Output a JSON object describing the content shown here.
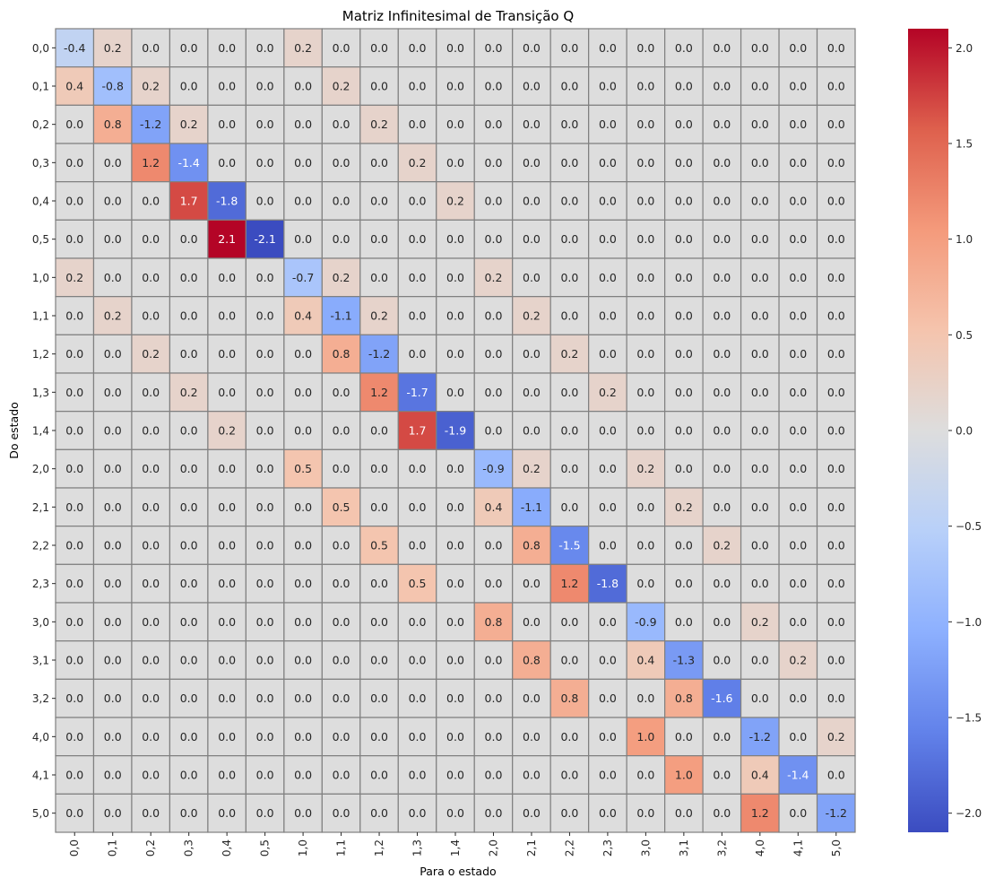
{
  "chart_data": {
    "type": "heatmap",
    "title": "Matriz Infinitesimal de Transição Q",
    "xlabel": "Para o estado",
    "ylabel": "Do estado",
    "x_categories": [
      "0,0",
      "0,1",
      "0,2",
      "0,3",
      "0,4",
      "0,5",
      "1,0",
      "1,1",
      "1,2",
      "1,3",
      "1,4",
      "2,0",
      "2,1",
      "2,2",
      "2,3",
      "3,0",
      "3,1",
      "3,2",
      "4,0",
      "4,1",
      "5,0"
    ],
    "y_categories": [
      "0,0",
      "0,1",
      "0,2",
      "0,3",
      "0,4",
      "0,5",
      "1,0",
      "1,1",
      "1,2",
      "1,3",
      "1,4",
      "2,0",
      "2,1",
      "2,2",
      "2,3",
      "3,0",
      "3,1",
      "3,2",
      "4,0",
      "4,1",
      "5,0"
    ],
    "values": [
      [
        -0.4,
        0.2,
        0,
        0,
        0,
        0,
        0.2,
        0,
        0,
        0,
        0,
        0,
        0,
        0,
        0,
        0,
        0,
        0,
        0,
        0,
        0
      ],
      [
        0.4,
        -0.8,
        0.2,
        0,
        0,
        0,
        0,
        0.2,
        0,
        0,
        0,
        0,
        0,
        0,
        0,
        0,
        0,
        0,
        0,
        0,
        0
      ],
      [
        0,
        0.8,
        -1.2,
        0.2,
        0,
        0,
        0,
        0,
        0.2,
        0,
        0,
        0,
        0,
        0,
        0,
        0,
        0,
        0,
        0,
        0,
        0
      ],
      [
        0,
        0,
        1.2,
        -1.4,
        0,
        0,
        0,
        0,
        0,
        0.2,
        0,
        0,
        0,
        0,
        0,
        0,
        0,
        0,
        0,
        0,
        0
      ],
      [
        0,
        0,
        0,
        1.7,
        -1.8,
        0,
        0,
        0,
        0,
        0,
        0.2,
        0,
        0,
        0,
        0,
        0,
        0,
        0,
        0,
        0,
        0
      ],
      [
        0,
        0,
        0,
        0,
        2.1,
        -2.1,
        0,
        0,
        0,
        0,
        0,
        0,
        0,
        0,
        0,
        0,
        0,
        0,
        0,
        0,
        0
      ],
      [
        0.2,
        0,
        0,
        0,
        0,
        0,
        -0.7,
        0.2,
        0,
        0,
        0,
        0.2,
        0,
        0,
        0,
        0,
        0,
        0,
        0,
        0,
        0
      ],
      [
        0,
        0.2,
        0,
        0,
        0,
        0,
        0.4,
        -1.1,
        0.2,
        0,
        0,
        0,
        0.2,
        0,
        0,
        0,
        0,
        0,
        0,
        0,
        0
      ],
      [
        0,
        0,
        0.2,
        0,
        0,
        0,
        0,
        0.8,
        -1.2,
        0,
        0,
        0,
        0,
        0.2,
        0,
        0,
        0,
        0,
        0,
        0,
        0
      ],
      [
        0,
        0,
        0,
        0.2,
        0,
        0,
        0,
        0,
        1.2,
        -1.7,
        0,
        0,
        0,
        0,
        0.2,
        0,
        0,
        0,
        0,
        0,
        0
      ],
      [
        0,
        0,
        0,
        0,
        0.2,
        0,
        0,
        0,
        0,
        1.7,
        -1.9,
        0,
        0,
        0,
        0,
        0,
        0,
        0,
        0,
        0,
        0
      ],
      [
        0,
        0,
        0,
        0,
        0,
        0,
        0.5,
        0,
        0,
        0,
        0,
        -0.9,
        0.2,
        0,
        0,
        0.2,
        0,
        0,
        0,
        0,
        0
      ],
      [
        0,
        0,
        0,
        0,
        0,
        0,
        0,
        0.5,
        0,
        0,
        0,
        0.4,
        -1.1,
        0,
        0,
        0,
        0.2,
        0,
        0,
        0,
        0
      ],
      [
        0,
        0,
        0,
        0,
        0,
        0,
        0,
        0,
        0.5,
        0,
        0,
        0,
        0.8,
        -1.5,
        0,
        0,
        0,
        0.2,
        0,
        0,
        0
      ],
      [
        0,
        0,
        0,
        0,
        0,
        0,
        0,
        0,
        0,
        0.5,
        0,
        0,
        0,
        1.2,
        -1.8,
        0,
        0,
        0,
        0,
        0,
        0
      ],
      [
        0,
        0,
        0,
        0,
        0,
        0,
        0,
        0,
        0,
        0,
        0,
        0.8,
        0,
        0,
        0,
        -0.9,
        0,
        0,
        0.2,
        0,
        0
      ],
      [
        0,
        0,
        0,
        0,
        0,
        0,
        0,
        0,
        0,
        0,
        0,
        0,
        0.8,
        0,
        0,
        0.4,
        -1.3,
        0,
        0,
        0.2,
        0
      ],
      [
        0,
        0,
        0,
        0,
        0,
        0,
        0,
        0,
        0,
        0,
        0,
        0,
        0,
        0.8,
        0,
        0,
        0.8,
        -1.6,
        0,
        0,
        0
      ],
      [
        0,
        0,
        0,
        0,
        0,
        0,
        0,
        0,
        0,
        0,
        0,
        0,
        0,
        0,
        0,
        1.0,
        0,
        0,
        -1.2,
        0,
        0.2
      ],
      [
        0,
        0,
        0,
        0,
        0,
        0,
        0,
        0,
        0,
        0,
        0,
        0,
        0,
        0,
        0,
        0,
        1.0,
        0,
        0.4,
        -1.4,
        0
      ],
      [
        0,
        0,
        0,
        0,
        0,
        0,
        0,
        0,
        0,
        0,
        0,
        0,
        0,
        0,
        0,
        0,
        0,
        0,
        1.2,
        0,
        -1.2
      ]
    ],
    "colormap": "coolwarm",
    "vmin": -2.1,
    "vmax": 2.1,
    "annotation_format": "0.0",
    "colorbar_ticks": [
      -2.0,
      -1.5,
      -1.0,
      -0.5,
      0.0,
      0.5,
      1.0,
      1.5,
      2.0
    ],
    "colorbar_tick_labels": [
      "−2.0",
      "−1.5",
      "−1.0",
      "−0.5",
      "0.0",
      "0.5",
      "1.0",
      "1.5",
      "2.0"
    ],
    "cell_border_color": "#808080"
  }
}
